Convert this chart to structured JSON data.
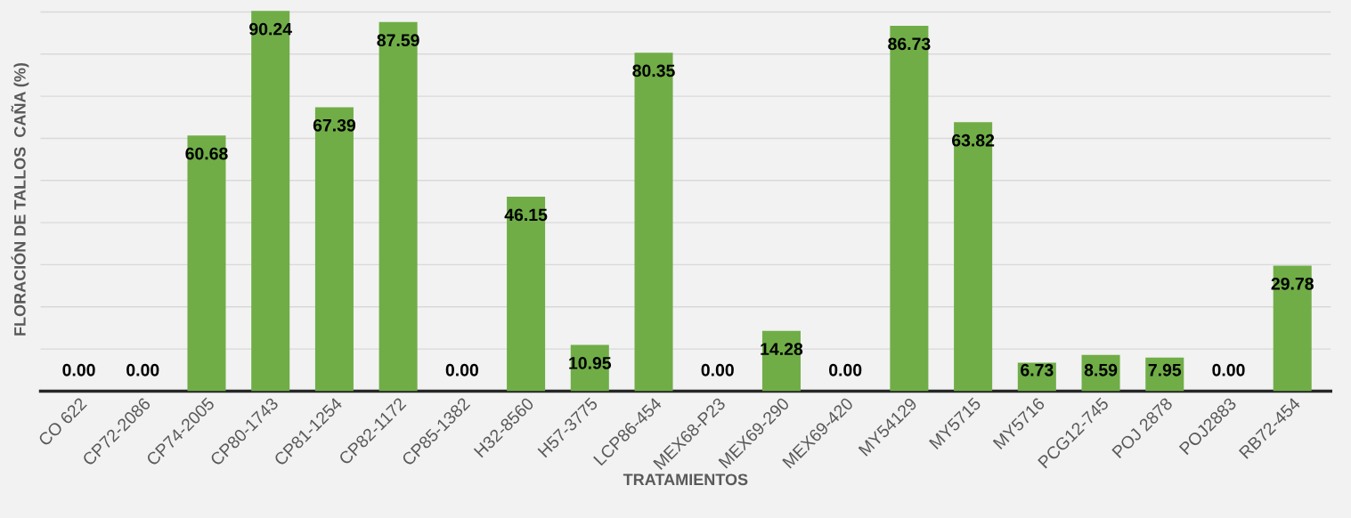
{
  "chart_data": {
    "type": "bar",
    "xlabel": "TRATAMIENTOS",
    "ylabel": "FLORACIÓN DE TALLOS  CAÑA (%)",
    "categories": [
      "CO 622",
      "CP72-2086",
      "CP74-2005",
      "CP80-1743",
      "CP81-1254",
      "CP82-1172",
      "CP85-1382",
      "H32-8560",
      "H57-3775",
      "LCP86-454",
      "MEX68-P23",
      "MEX69-290",
      "MEX69-420",
      "MY54129",
      "MY5715",
      "MY5716",
      "PCG12-745",
      "POJ 2878",
      "POJ2883",
      "RB72-454"
    ],
    "values": [
      0.0,
      0.0,
      60.68,
      90.24,
      67.39,
      87.59,
      0.0,
      46.15,
      10.95,
      80.35,
      0.0,
      14.28,
      0.0,
      86.73,
      63.82,
      6.73,
      8.59,
      7.95,
      0.0,
      29.78
    ],
    "value_labels": [
      "0.00",
      "0.00",
      "60.68",
      "90.24",
      "67.39",
      "87.59",
      "0.00",
      "46.15",
      "10.95",
      "80.35",
      "0.00",
      "14.28",
      "0.00",
      "86.73",
      "63.82",
      "6.73",
      "8.59",
      "7.95",
      "0.00",
      "29.78"
    ],
    "color": "#70ad47",
    "ylim": [
      0,
      91
    ],
    "yticks": [
      {
        "value": 0,
        "label": null
      },
      {
        "value": 10,
        "label": null
      },
      {
        "value": 20,
        "label": null
      },
      {
        "value": 30,
        "label": null
      },
      {
        "value": 40,
        "label": null
      },
      {
        "value": 50,
        "label": null
      },
      {
        "value": 60,
        "label": null
      },
      {
        "value": 70,
        "label": null
      },
      {
        "value": 80,
        "label": null
      },
      {
        "value": 90,
        "label": null
      }
    ],
    "grid": "y",
    "legend": false
  }
}
